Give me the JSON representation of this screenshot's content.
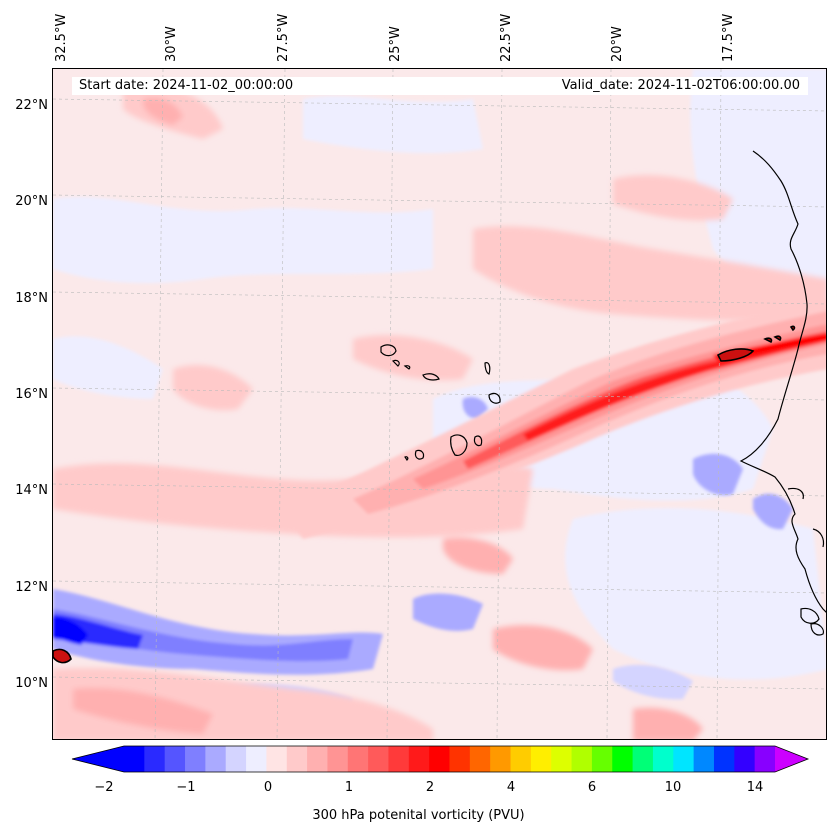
{
  "lon_labels": [
    "32.5°W",
    "30°W",
    "27.5°W",
    "25°W",
    "22.5°W",
    "20°W",
    "17.5°W"
  ],
  "lat_labels": [
    "22°N",
    "20°N",
    "18°N",
    "16°N",
    "14°N",
    "12°N",
    "10°N"
  ],
  "info": {
    "start_date": "Start date: 2024-11-02_00:00:00",
    "valid_date": "Valid_date: 2024-11-02T06:00:00.00"
  },
  "colorbar": {
    "label": "300 hPa potenital vorticity (PVU)",
    "ticks": [
      "−2",
      "−1",
      "0",
      "1",
      "2",
      "4",
      "6",
      "10",
      "14"
    ],
    "colors": [
      "#0000ff",
      "#2a2aff",
      "#5555ff",
      "#7f7fff",
      "#aaaaff",
      "#d4d4ff",
      "#eeeeff",
      "#ffe4e4",
      "#ffcaca",
      "#ffb0b0",
      "#ff9494",
      "#ff7575",
      "#ff5a5a",
      "#ff3a3a",
      "#ff1a1a",
      "#ff0000",
      "#ff3300",
      "#ff6600",
      "#ff9900",
      "#ffcc00",
      "#ffee00",
      "#ddff00",
      "#b0ff00",
      "#66ff00",
      "#00ff00",
      "#00ff77",
      "#00ffcc",
      "#00e5ff",
      "#0088ff",
      "#0033ff",
      "#3300ff",
      "#8800ff"
    ],
    "under_color": "#0000ff",
    "over_color": "#cc00ff"
  },
  "map": {
    "background_color": "#fbe9ea",
    "coastline_color": "#000000"
  }
}
